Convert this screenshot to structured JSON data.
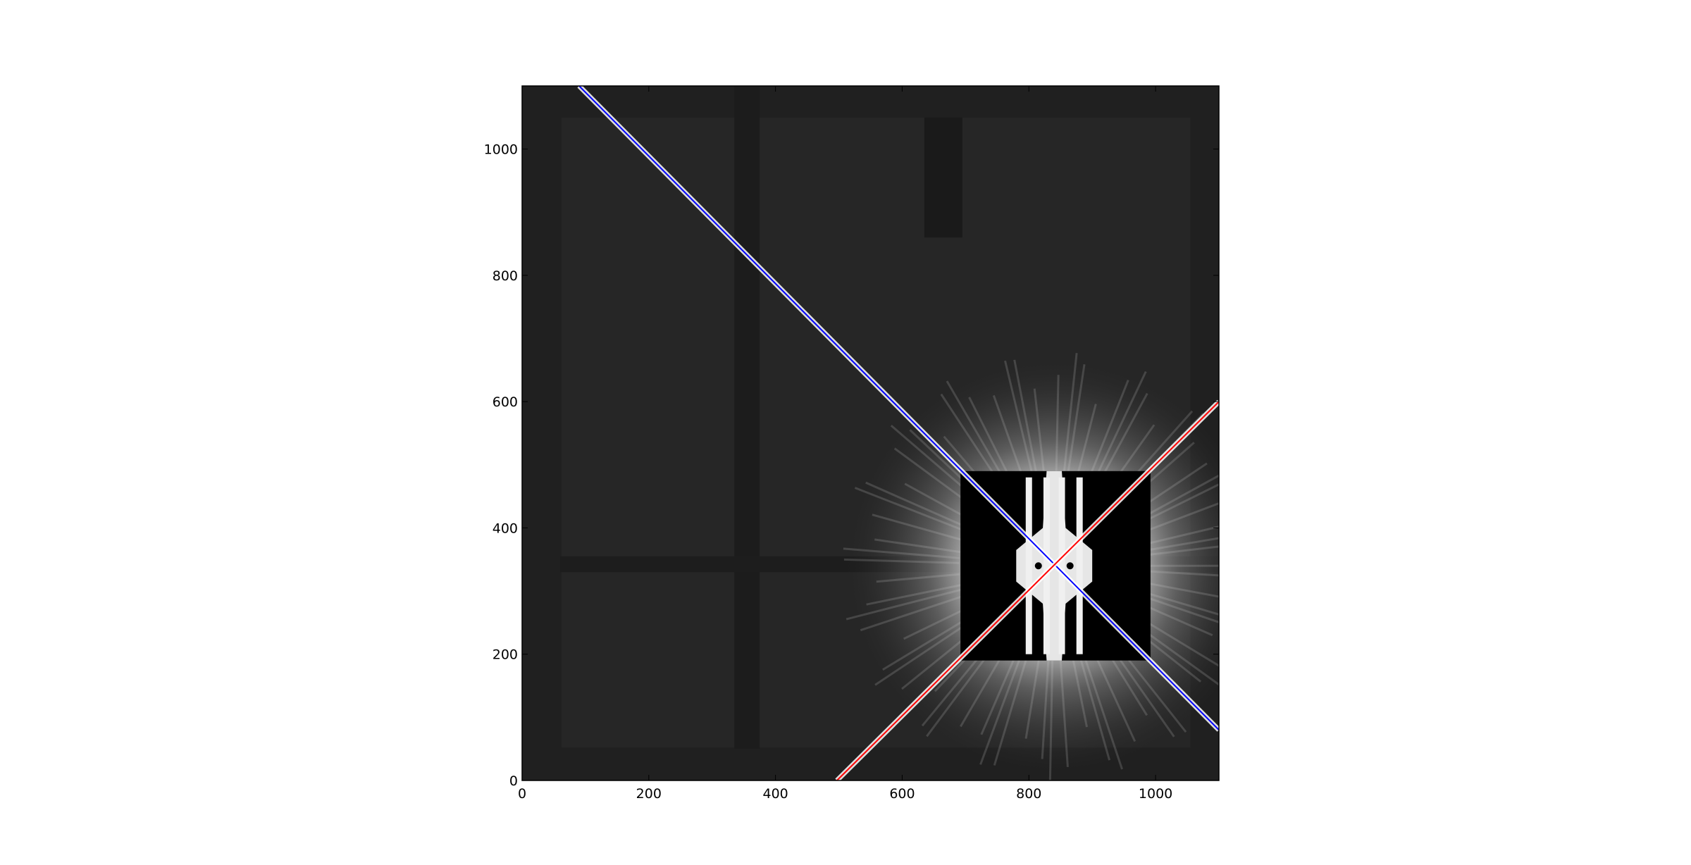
{
  "chart_data": {
    "type": "image",
    "title": "",
    "xlabel": "",
    "ylabel": "",
    "xlim": [
      0,
      1100
    ],
    "ylim": [
      0,
      1100
    ],
    "x_ticks": [
      0,
      200,
      400,
      600,
      800,
      1000
    ],
    "y_ticks": [
      0,
      200,
      400,
      600,
      800,
      1000
    ],
    "grid": false,
    "legend": "none",
    "colormap": "gray",
    "image_features": {
      "detector_inner_border": {
        "x": [
          62,
          1055
        ],
        "y": [
          52,
          1050
        ]
      },
      "vertical_shadow_strip_x": [
        335,
        375
      ],
      "horizontal_shadow_strip_y": [
        330,
        355
      ],
      "shadow_block": {
        "x": [
          635,
          695
        ],
        "y": [
          860,
          1050
        ]
      },
      "bright_center": [
        840,
        340
      ],
      "black_box": {
        "x": [
          692,
          992
        ],
        "y": [
          190,
          490
        ]
      }
    },
    "lines": [
      {
        "color": "#0000ff",
        "x": [
          90,
          1100
        ],
        "y": [
          1100,
          80
        ]
      },
      {
        "color": "#ff0000",
        "x": [
          497,
          1100
        ],
        "y": [
          0,
          600
        ]
      }
    ]
  }
}
